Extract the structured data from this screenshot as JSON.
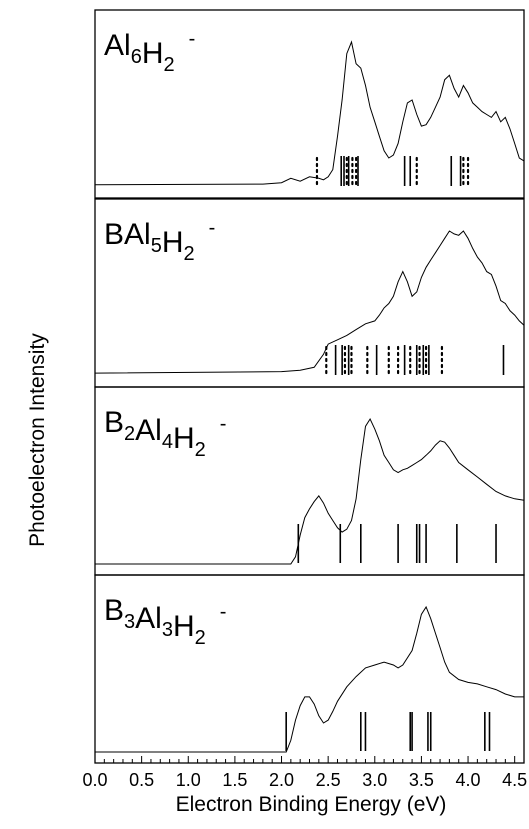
{
  "chart_data": {
    "type": "line",
    "ylabel": "Photoelectron Intensity",
    "xlabel": "Electron Binding Energy (eV)",
    "xlim": [
      0.0,
      4.6
    ],
    "x_ticks": [
      "0.0",
      "0.5",
      "1.0",
      "1.5",
      "2.0",
      "2.5",
      "3.0",
      "3.5",
      "4.0",
      "4.5"
    ],
    "panels": [
      {
        "name": "Al6H2-",
        "label_parts": [
          [
            "Al",
            0
          ],
          [
            "6",
            1
          ],
          [
            "H",
            0
          ],
          [
            "2",
            1
          ],
          [
            "-",
            2
          ]
        ],
        "spectrum": [
          [
            0.0,
            0.015
          ],
          [
            1.8,
            0.02
          ],
          [
            2.0,
            0.03
          ],
          [
            2.1,
            0.06
          ],
          [
            2.2,
            0.04
          ],
          [
            2.3,
            0.07
          ],
          [
            2.4,
            0.06
          ],
          [
            2.45,
            0.05
          ],
          [
            2.5,
            0.07
          ],
          [
            2.55,
            0.12
          ],
          [
            2.6,
            0.35
          ],
          [
            2.65,
            0.6
          ],
          [
            2.7,
            0.92
          ],
          [
            2.75,
            1.0
          ],
          [
            2.8,
            0.85
          ],
          [
            2.85,
            0.82
          ],
          [
            2.9,
            0.7
          ],
          [
            2.95,
            0.55
          ],
          [
            3.0,
            0.45
          ],
          [
            3.05,
            0.35
          ],
          [
            3.1,
            0.25
          ],
          [
            3.15,
            0.2
          ],
          [
            3.2,
            0.22
          ],
          [
            3.25,
            0.3
          ],
          [
            3.3,
            0.45
          ],
          [
            3.35,
            0.58
          ],
          [
            3.4,
            0.6
          ],
          [
            3.45,
            0.5
          ],
          [
            3.5,
            0.42
          ],
          [
            3.55,
            0.43
          ],
          [
            3.6,
            0.48
          ],
          [
            3.65,
            0.55
          ],
          [
            3.7,
            0.62
          ],
          [
            3.75,
            0.74
          ],
          [
            3.8,
            0.77
          ],
          [
            3.85,
            0.68
          ],
          [
            3.9,
            0.62
          ],
          [
            3.95,
            0.7
          ],
          [
            4.0,
            0.65
          ],
          [
            4.05,
            0.58
          ],
          [
            4.1,
            0.55
          ],
          [
            4.15,
            0.52
          ],
          [
            4.2,
            0.5
          ],
          [
            4.25,
            0.48
          ],
          [
            4.3,
            0.52
          ],
          [
            4.35,
            0.45
          ],
          [
            4.4,
            0.48
          ],
          [
            4.45,
            0.4
          ],
          [
            4.5,
            0.3
          ],
          [
            4.55,
            0.2
          ],
          [
            4.6,
            0.18
          ]
        ],
        "solid_lines": [
          2.64,
          2.67,
          2.72,
          2.82,
          3.32,
          3.38,
          3.82,
          3.92
        ],
        "dotted_lines": [
          2.38,
          2.7,
          2.76,
          2.8,
          3.45,
          3.95,
          4.0
        ]
      },
      {
        "name": "BAl5H2-",
        "label_parts": [
          [
            "BAl",
            0
          ],
          [
            "5",
            1
          ],
          [
            "H",
            0
          ],
          [
            "2",
            1
          ],
          [
            "-",
            2
          ]
        ],
        "spectrum": [
          [
            0.0,
            0.02
          ],
          [
            2.0,
            0.03
          ],
          [
            2.2,
            0.04
          ],
          [
            2.35,
            0.06
          ],
          [
            2.45,
            0.15
          ],
          [
            2.5,
            0.22
          ],
          [
            2.6,
            0.25
          ],
          [
            2.7,
            0.28
          ],
          [
            2.8,
            0.32
          ],
          [
            2.9,
            0.36
          ],
          [
            3.0,
            0.38
          ],
          [
            3.05,
            0.42
          ],
          [
            3.1,
            0.47
          ],
          [
            3.15,
            0.5
          ],
          [
            3.2,
            0.55
          ],
          [
            3.25,
            0.65
          ],
          [
            3.3,
            0.72
          ],
          [
            3.35,
            0.65
          ],
          [
            3.4,
            0.55
          ],
          [
            3.45,
            0.58
          ],
          [
            3.5,
            0.68
          ],
          [
            3.55,
            0.75
          ],
          [
            3.6,
            0.8
          ],
          [
            3.65,
            0.85
          ],
          [
            3.7,
            0.9
          ],
          [
            3.75,
            0.95
          ],
          [
            3.8,
            1.0
          ],
          [
            3.85,
            0.98
          ],
          [
            3.9,
            0.97
          ],
          [
            3.95,
            1.0
          ],
          [
            4.0,
            0.95
          ],
          [
            4.05,
            0.88
          ],
          [
            4.1,
            0.82
          ],
          [
            4.15,
            0.78
          ],
          [
            4.2,
            0.72
          ],
          [
            4.25,
            0.7
          ],
          [
            4.3,
            0.62
          ],
          [
            4.35,
            0.52
          ],
          [
            4.4,
            0.5
          ],
          [
            4.45,
            0.45
          ],
          [
            4.5,
            0.42
          ],
          [
            4.55,
            0.38
          ],
          [
            4.6,
            0.35
          ]
        ],
        "solid_lines": [
          2.58,
          2.65,
          2.72,
          3.02,
          3.32,
          3.45,
          3.52,
          3.58,
          4.38
        ],
        "dotted_lines": [
          2.48,
          2.68,
          2.75,
          2.92,
          3.15,
          3.25,
          3.38,
          3.48,
          3.55,
          3.72
        ]
      },
      {
        "name": "B2Al4H2-",
        "label_parts": [
          [
            "B",
            0
          ],
          [
            "2",
            1
          ],
          [
            "Al",
            0
          ],
          [
            "4",
            1
          ],
          [
            "H",
            0
          ],
          [
            "2",
            1
          ],
          [
            "-",
            2
          ]
        ],
        "spectrum": [
          [
            0.0,
            0.0
          ],
          [
            2.1,
            0.0
          ],
          [
            2.15,
            0.05
          ],
          [
            2.2,
            0.2
          ],
          [
            2.25,
            0.32
          ],
          [
            2.3,
            0.38
          ],
          [
            2.35,
            0.43
          ],
          [
            2.4,
            0.47
          ],
          [
            2.45,
            0.42
          ],
          [
            2.5,
            0.35
          ],
          [
            2.55,
            0.3
          ],
          [
            2.6,
            0.25
          ],
          [
            2.65,
            0.22
          ],
          [
            2.7,
            0.24
          ],
          [
            2.75,
            0.3
          ],
          [
            2.8,
            0.45
          ],
          [
            2.85,
            0.72
          ],
          [
            2.9,
            0.95
          ],
          [
            2.95,
            1.0
          ],
          [
            3.0,
            0.93
          ],
          [
            3.05,
            0.85
          ],
          [
            3.1,
            0.75
          ],
          [
            3.15,
            0.7
          ],
          [
            3.2,
            0.65
          ],
          [
            3.25,
            0.63
          ],
          [
            3.3,
            0.65
          ],
          [
            3.35,
            0.66
          ],
          [
            3.4,
            0.68
          ],
          [
            3.45,
            0.7
          ],
          [
            3.5,
            0.72
          ],
          [
            3.55,
            0.75
          ],
          [
            3.6,
            0.78
          ],
          [
            3.65,
            0.82
          ],
          [
            3.7,
            0.85
          ],
          [
            3.75,
            0.84
          ],
          [
            3.8,
            0.8
          ],
          [
            3.85,
            0.75
          ],
          [
            3.9,
            0.7
          ],
          [
            4.0,
            0.65
          ],
          [
            4.1,
            0.6
          ],
          [
            4.2,
            0.55
          ],
          [
            4.3,
            0.5
          ],
          [
            4.4,
            0.47
          ],
          [
            4.5,
            0.45
          ],
          [
            4.6,
            0.44
          ]
        ],
        "solid_lines": [
          2.18,
          2.63,
          2.85,
          3.25,
          3.45,
          3.48,
          3.55,
          3.88,
          4.3
        ],
        "dotted_lines": []
      },
      {
        "name": "B3Al3H2-",
        "label_parts": [
          [
            "B",
            0
          ],
          [
            "3",
            1
          ],
          [
            "Al",
            0
          ],
          [
            "3",
            1
          ],
          [
            "H",
            0
          ],
          [
            "2",
            1
          ],
          [
            "-",
            2
          ]
        ],
        "spectrum": [
          [
            0.0,
            0.0
          ],
          [
            2.05,
            0.0
          ],
          [
            2.1,
            0.08
          ],
          [
            2.15,
            0.22
          ],
          [
            2.2,
            0.32
          ],
          [
            2.25,
            0.38
          ],
          [
            2.3,
            0.38
          ],
          [
            2.35,
            0.33
          ],
          [
            2.4,
            0.25
          ],
          [
            2.45,
            0.2
          ],
          [
            2.5,
            0.22
          ],
          [
            2.55,
            0.28
          ],
          [
            2.6,
            0.35
          ],
          [
            2.7,
            0.45
          ],
          [
            2.8,
            0.52
          ],
          [
            2.9,
            0.58
          ],
          [
            3.0,
            0.6
          ],
          [
            3.1,
            0.62
          ],
          [
            3.2,
            0.6
          ],
          [
            3.25,
            0.58
          ],
          [
            3.3,
            0.6
          ],
          [
            3.4,
            0.7
          ],
          [
            3.45,
            0.82
          ],
          [
            3.5,
            0.95
          ],
          [
            3.55,
            1.0
          ],
          [
            3.6,
            0.92
          ],
          [
            3.65,
            0.82
          ],
          [
            3.7,
            0.72
          ],
          [
            3.75,
            0.62
          ],
          [
            3.8,
            0.55
          ],
          [
            3.9,
            0.5
          ],
          [
            4.0,
            0.48
          ],
          [
            4.1,
            0.47
          ],
          [
            4.2,
            0.45
          ],
          [
            4.3,
            0.43
          ],
          [
            4.4,
            0.4
          ],
          [
            4.5,
            0.38
          ],
          [
            4.6,
            0.38
          ]
        ],
        "solid_lines": [
          2.05,
          2.85,
          2.9,
          3.38,
          3.4,
          3.57,
          3.6,
          4.18,
          4.23
        ],
        "dotted_lines": []
      }
    ]
  }
}
